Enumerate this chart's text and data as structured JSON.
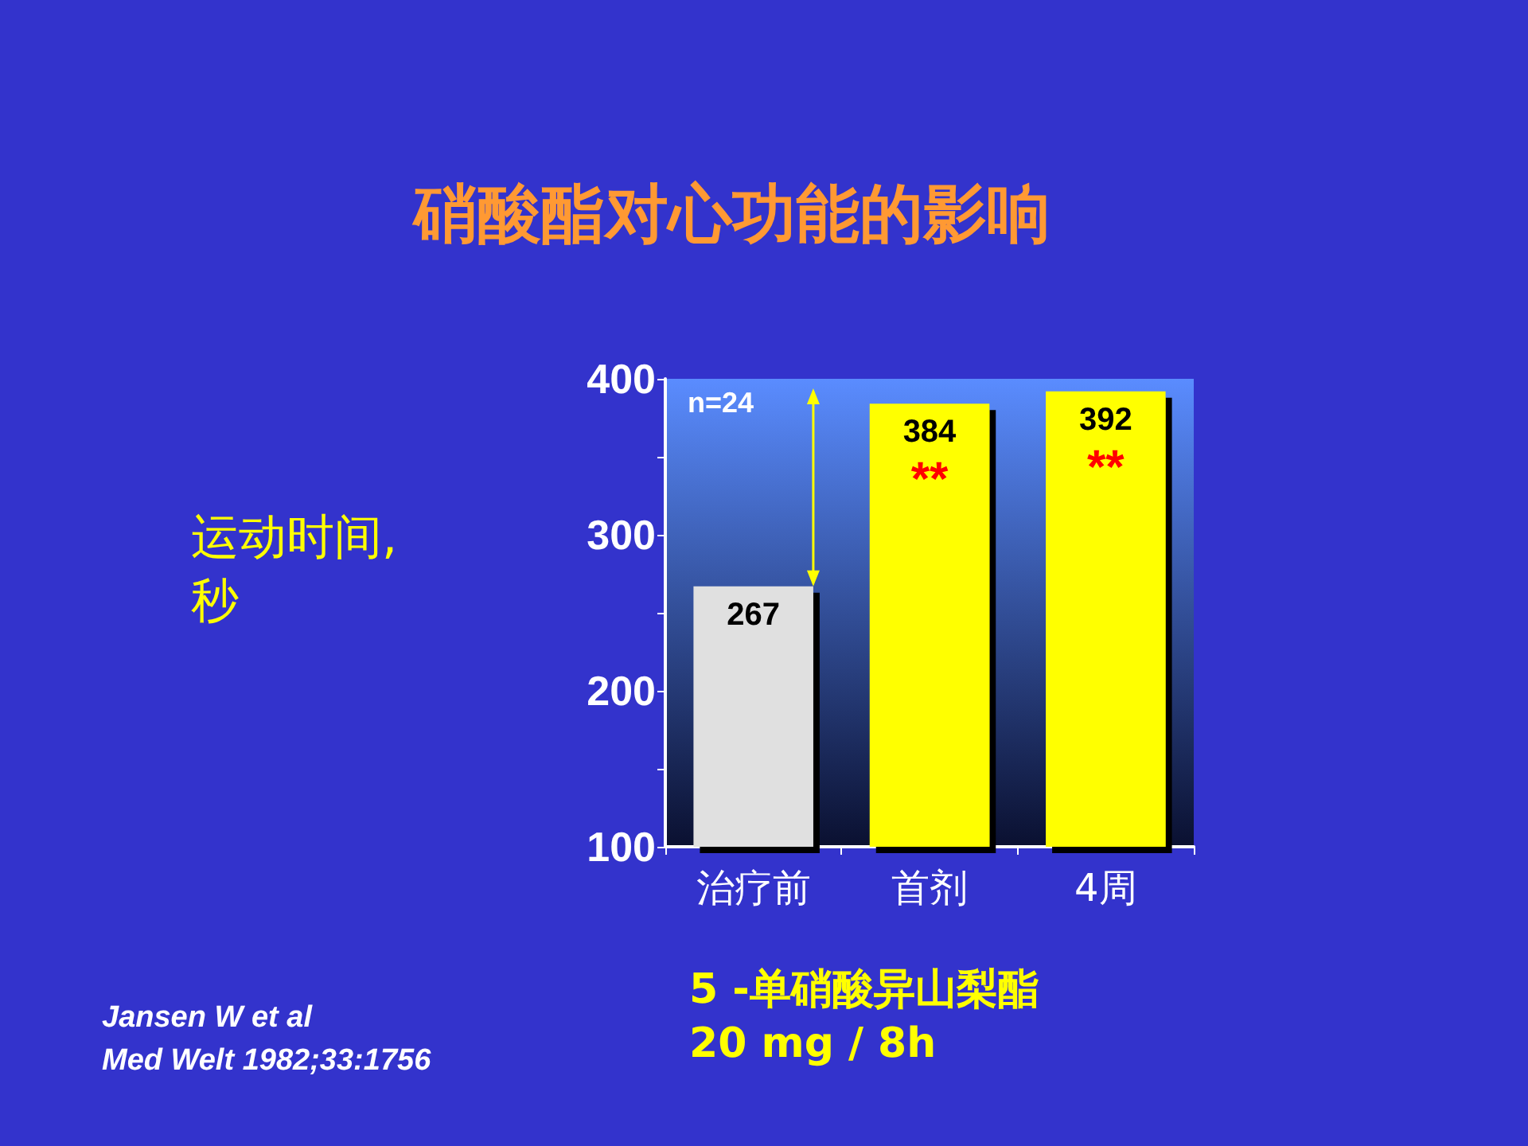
{
  "chart_data": {
    "type": "bar",
    "title": "硝酸酯对心功能的影响",
    "ylabel": "运动时间,\n秒",
    "xlabel": "5 -单硝酸异山梨酯\n20 mg / 8h",
    "categories": [
      "治疗前",
      "首剂",
      "4周"
    ],
    "values": [
      267,
      384,
      392
    ],
    "colors": [
      "#e0e0e0",
      "#ffff00",
      "#ffff00"
    ],
    "ylim": [
      100,
      400
    ],
    "yticks": [
      100,
      {
        "value": 150,
        "label": null
      },
      200,
      {
        "value": 250,
        "label": null
      },
      300,
      {
        "value": 350,
        "label": null
      },
      400
    ],
    "data_labels": true,
    "grid": false,
    "annotations": [
      "n=24",
      "**",
      "**",
      "Jansen W et al\nMed Welt 1982;33:1756"
    ]
  }
}
